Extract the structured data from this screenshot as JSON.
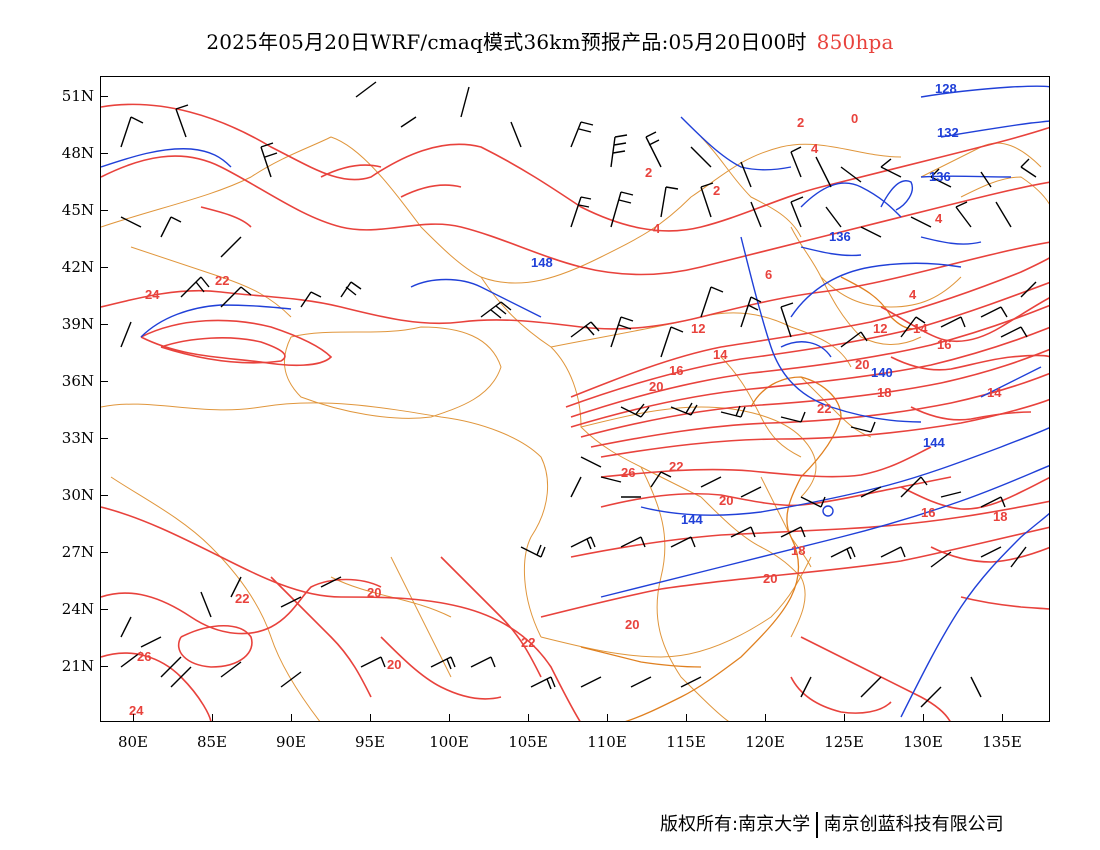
{
  "title": {
    "main": "2025年05月20日WRF/cmaq模式36km预报产品:05月20日00时",
    "level": "850hpa"
  },
  "axes": {
    "lat_labels": [
      "51N",
      "48N",
      "45N",
      "42N",
      "39N",
      "36N",
      "33N",
      "30N",
      "27N",
      "24N",
      "21N"
    ],
    "lon_labels": [
      "80E",
      "85E",
      "90E",
      "95E",
      "100E",
      "105E",
      "110E",
      "115E",
      "120E",
      "125E",
      "130E",
      "135E"
    ]
  },
  "map": {
    "colors": {
      "temperature": "#e8423c",
      "height": "#2040d8",
      "border": "#e0963c",
      "wind": "#000000"
    },
    "height_labels": [
      "128",
      "132",
      "136",
      "136",
      "140",
      "144",
      "144",
      "148"
    ],
    "temperature_labels": [
      "0",
      "2",
      "2",
      "2",
      "4",
      "4",
      "4",
      "4",
      "6",
      "12",
      "12",
      "14",
      "14",
      "14",
      "16",
      "16",
      "16",
      "18",
      "18",
      "18",
      "20",
      "20",
      "20",
      "20",
      "20",
      "20",
      "20",
      "22",
      "22",
      "22",
      "22",
      "22",
      "24",
      "24",
      "26",
      "26"
    ]
  },
  "footer": {
    "left": "版权所有:南京大学",
    "right": "南京创蓝科技有限公司"
  }
}
